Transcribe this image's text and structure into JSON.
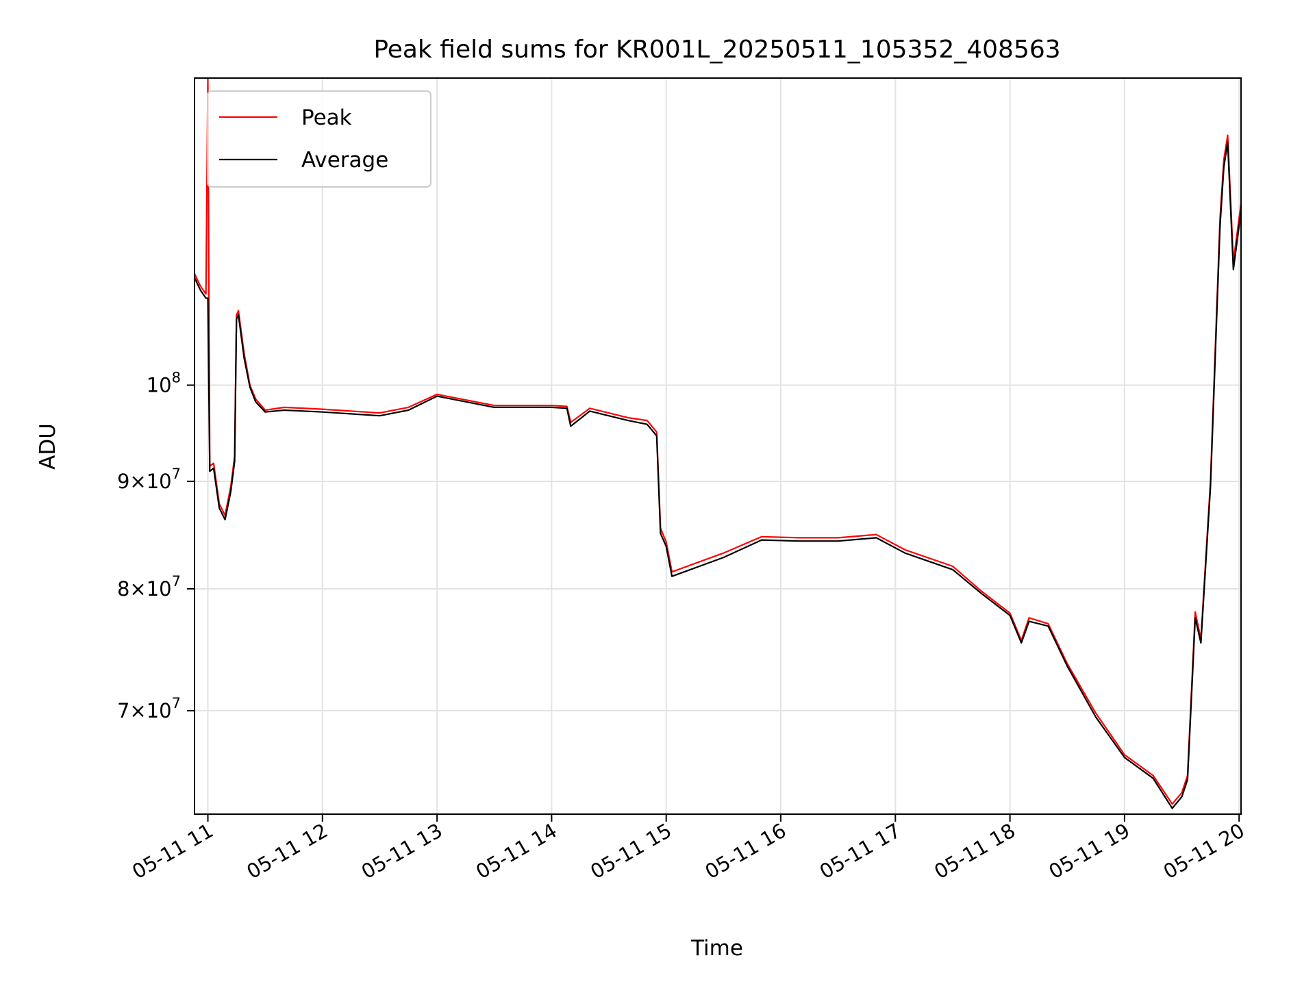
{
  "chart_data": {
    "type": "line",
    "title": "Peak field sums for KR001L_20250511_105352_408563",
    "xlabel": "Time",
    "ylabel": "ADU",
    "xlim": [
      "05-11 10:53",
      "05-11 20:01"
    ],
    "ylim": [
      62500000,
      140000000
    ],
    "yscale": "log",
    "grid": true,
    "legend_position": "upper-left",
    "x_ticks": [
      "05-11 11",
      "05-11 12",
      "05-11 13",
      "05-11 14",
      "05-11 15",
      "05-11 16",
      "05-11 17",
      "05-11 18",
      "05-11 19",
      "05-11 20"
    ],
    "y_tick_values": [
      70000000,
      80000000,
      90000000,
      100000000
    ],
    "y_tick_labels": [
      {
        "mantissa": "7",
        "base": "10",
        "exp": "7"
      },
      {
        "mantissa": "8",
        "base": "10",
        "exp": "7"
      },
      {
        "mantissa": "9",
        "base": "10",
        "exp": "7"
      },
      {
        "mantissa": "",
        "base": "10",
        "exp": "8"
      }
    ],
    "x": [
      "05-11 10:53",
      "05-11 10:56",
      "05-11 10:59",
      "05-11 11:00",
      "05-11 11:01",
      "05-11 11:03",
      "05-11 11:06",
      "05-11 11:09",
      "05-11 11:12",
      "05-11 11:14",
      "05-11 11:15",
      "05-11 11:16",
      "05-11 11:19",
      "05-11 11:22",
      "05-11 11:25",
      "05-11 11:30",
      "05-11 11:40",
      "05-11 12:00",
      "05-11 12:30",
      "05-11 12:45",
      "05-11 13:00",
      "05-11 13:30",
      "05-11 14:00",
      "05-11 14:08",
      "05-11 14:10",
      "05-11 14:20",
      "05-11 14:40",
      "05-11 14:50",
      "05-11 14:55",
      "05-11 14:57",
      "05-11 15:00",
      "05-11 15:03",
      "05-11 15:30",
      "05-11 15:50",
      "05-11 16:10",
      "05-11 16:30",
      "05-11 16:50",
      "05-11 17:05",
      "05-11 17:30",
      "05-11 17:45",
      "05-11 18:00",
      "05-11 18:06",
      "05-11 18:10",
      "05-11 18:20",
      "05-11 18:30",
      "05-11 18:45",
      "05-11 19:00",
      "05-11 19:15",
      "05-11 19:25",
      "05-11 19:30",
      "05-11 19:33",
      "05-11 19:37",
      "05-11 19:40",
      "05-11 19:45",
      "05-11 19:50",
      "05-11 19:52",
      "05-11 19:54",
      "05-11 19:57",
      "05-11 20:01"
    ],
    "series": [
      {
        "name": "Peak",
        "color": "#ff0000",
        "values": [
          113000000,
          111500000,
          110500000,
          140000000,
          91500000,
          91800000,
          87800000,
          86700000,
          89500000,
          92500000,
          108000000,
          108500000,
          103500000,
          100000000,
          98500000,
          97300000,
          97600000,
          97400000,
          97000000,
          97600000,
          99000000,
          97800000,
          97800000,
          97700000,
          96000000,
          97500000,
          96500000,
          96200000,
          95000000,
          85500000,
          84200000,
          81500000,
          83200000,
          84700000,
          84600000,
          84600000,
          84900000,
          83500000,
          82000000,
          79800000,
          77900000,
          75600000,
          77500000,
          77000000,
          73700000,
          69800000,
          66700000,
          65200000,
          63200000,
          64000000,
          65200000,
          78000000,
          75700000,
          90000000,
          120000000,
          128000000,
          131500000,
          114500000,
          122000000
        ]
      },
      {
        "name": "Average",
        "color": "#000000",
        "values": [
          112500000,
          111000000,
          110000000,
          110000000,
          91000000,
          91300000,
          87400000,
          86300000,
          89000000,
          92000000,
          107500000,
          108000000,
          103000000,
          99800000,
          98200000,
          97100000,
          97300000,
          97100000,
          96700000,
          97300000,
          98800000,
          97600000,
          97600000,
          97500000,
          95600000,
          97200000,
          96200000,
          95800000,
          94600000,
          85000000,
          83800000,
          81100000,
          82800000,
          84400000,
          84300000,
          84300000,
          84600000,
          83200000,
          81700000,
          79600000,
          77700000,
          75400000,
          77200000,
          76800000,
          73500000,
          69500000,
          66500000,
          65000000,
          62900000,
          63700000,
          64900000,
          77500000,
          75400000,
          89500000,
          119000000,
          127000000,
          130500000,
          113500000,
          121000000
        ]
      }
    ]
  }
}
